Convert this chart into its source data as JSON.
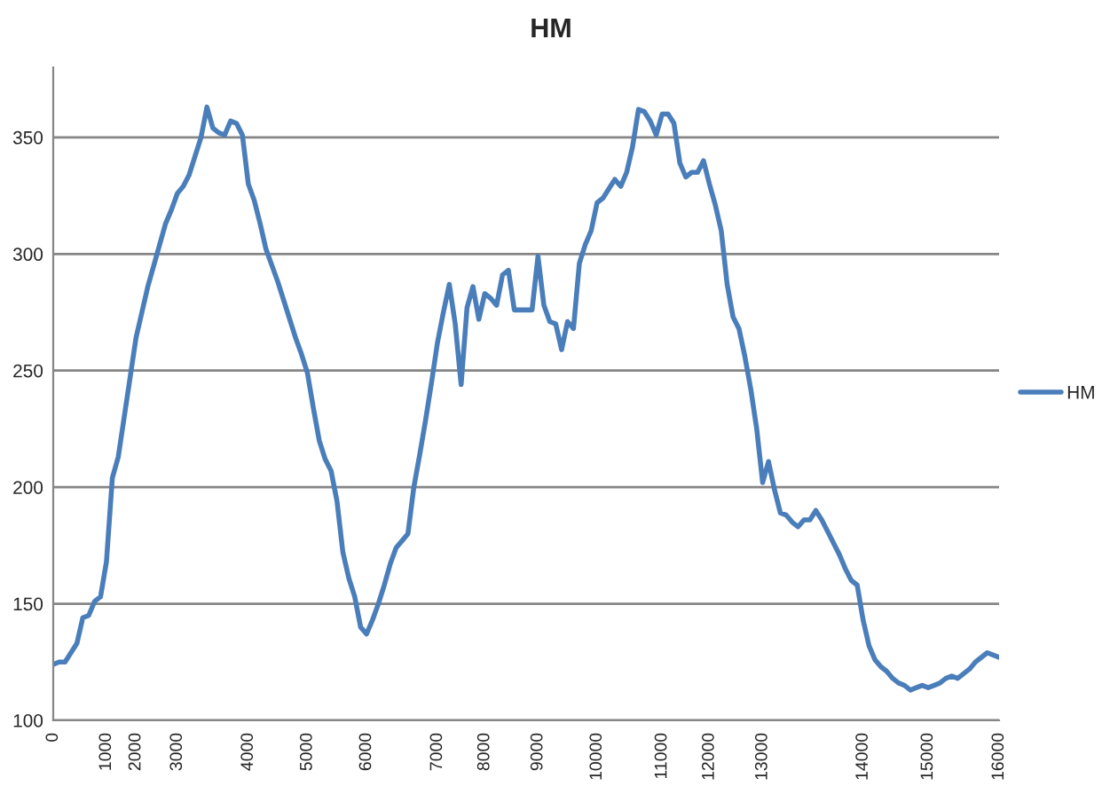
{
  "chart_data": {
    "type": "line",
    "title": "HM",
    "categories": [
      "0",
      null,
      null,
      null,
      null,
      null,
      null,
      null,
      null,
      "1000",
      null,
      null,
      null,
      null,
      "2000",
      null,
      null,
      null,
      null,
      null,
      null,
      "3000",
      null,
      null,
      null,
      null,
      null,
      null,
      null,
      null,
      null,
      null,
      null,
      "4000",
      null,
      null,
      null,
      null,
      null,
      null,
      null,
      null,
      null,
      "5000",
      null,
      null,
      null,
      null,
      null,
      null,
      null,
      null,
      null,
      "6000",
      null,
      null,
      null,
      null,
      null,
      null,
      null,
      null,
      null,
      null,
      null,
      "7000",
      null,
      null,
      null,
      null,
      null,
      null,
      null,
      "8000",
      null,
      null,
      null,
      null,
      null,
      null,
      null,
      null,
      "9000",
      null,
      null,
      null,
      null,
      null,
      null,
      null,
      null,
      null,
      "10000",
      null,
      null,
      null,
      null,
      null,
      null,
      null,
      null,
      null,
      null,
      "11000",
      null,
      null,
      null,
      null,
      null,
      null,
      null,
      "12000",
      null,
      null,
      null,
      null,
      null,
      null,
      null,
      null,
      "13000",
      null,
      null,
      null,
      null,
      null,
      null,
      null,
      null,
      null,
      null,
      null,
      null,
      null,
      null,
      null,
      null,
      "14000",
      null,
      null,
      null,
      null,
      null,
      null,
      null,
      null,
      null,
      null,
      "15000",
      null,
      null,
      null,
      null,
      null,
      null,
      null,
      null,
      null,
      null,
      null,
      "16000"
    ],
    "series": [
      {
        "name": "HM",
        "color": "#4a7ebb",
        "values": [
          124,
          125,
          125,
          129,
          133,
          144,
          145,
          151,
          153,
          168,
          204,
          213,
          230,
          247,
          264,
          275,
          286,
          295,
          304,
          313,
          319,
          326,
          329,
          334,
          342,
          350,
          363,
          354,
          352,
          351,
          357,
          356,
          351,
          330,
          323,
          313,
          302,
          295,
          288,
          280,
          272,
          264,
          257,
          249,
          234,
          220,
          212,
          207,
          194,
          172,
          161,
          153,
          140,
          137,
          143,
          150,
          158,
          167,
          174,
          177,
          180,
          200,
          214,
          229,
          245,
          262,
          275,
          287,
          270,
          244,
          277,
          286,
          272,
          283,
          281,
          278,
          291,
          293,
          276,
          276,
          276,
          276,
          299,
          278,
          271,
          270,
          259,
          271,
          268,
          296,
          304,
          310,
          322,
          324,
          328,
          332,
          329,
          335,
          346,
          362,
          361,
          357,
          351,
          360,
          360,
          356,
          339,
          333,
          335,
          335,
          340,
          330,
          321,
          310,
          287,
          273,
          268,
          256,
          242,
          225,
          202,
          211,
          199,
          189,
          188,
          185,
          183,
          186,
          186,
          190,
          186,
          181,
          176,
          171,
          165,
          160,
          158,
          143,
          132,
          126,
          123,
          121,
          118,
          116,
          115,
          113,
          114,
          115,
          114,
          115,
          116,
          118,
          119,
          118,
          120,
          122,
          125,
          127,
          129,
          128,
          127
        ]
      }
    ],
    "ylim": [
      100,
      380
    ],
    "yticks": [
      100,
      150,
      200,
      250,
      300,
      350
    ],
    "grid": "y",
    "legend": "right"
  }
}
